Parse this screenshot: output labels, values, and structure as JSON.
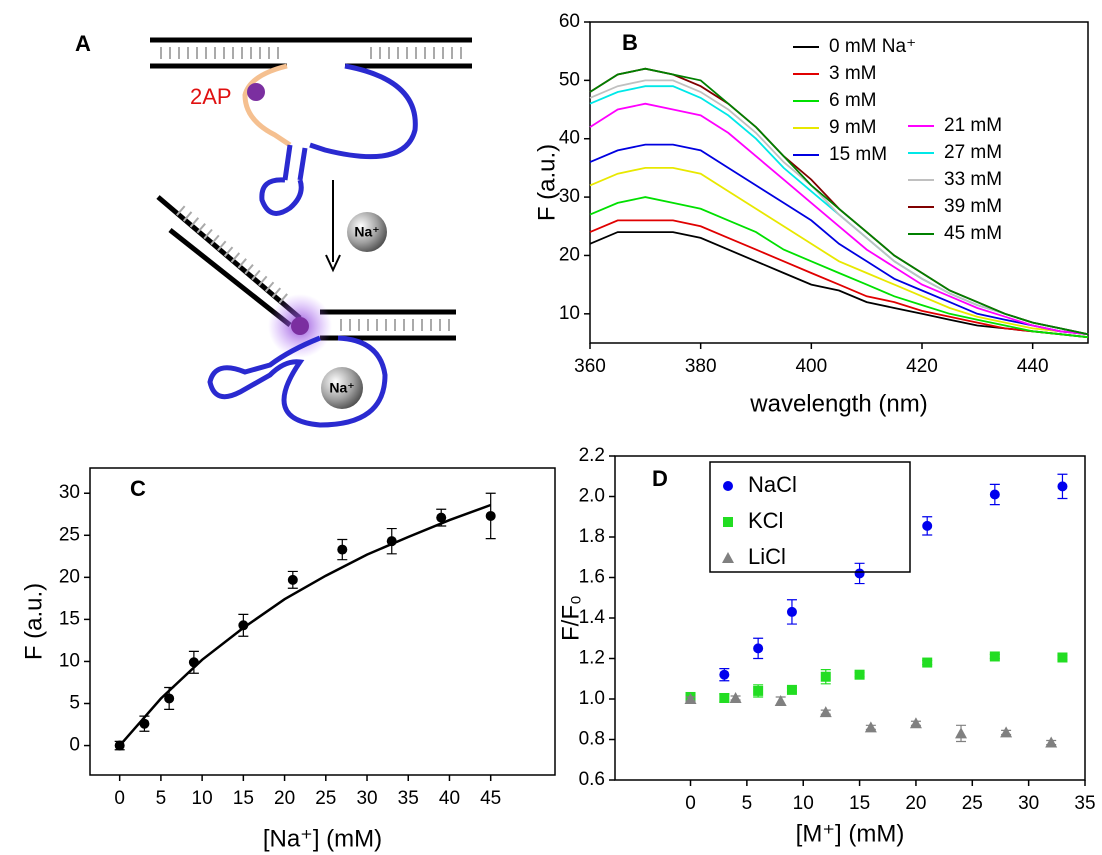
{
  "panel_a": {
    "panel": "A",
    "label_2ap": "2AP",
    "ion_top": "Na⁺",
    "ion_bottom": "Na⁺"
  },
  "chart_data": [
    {
      "type": "line",
      "panel": "B",
      "x_label": "wavelength (nm)",
      "y_label": "F  (a.u.)",
      "x": [
        360,
        365,
        370,
        375,
        380,
        385,
        390,
        395,
        400,
        405,
        410,
        415,
        420,
        425,
        430,
        435,
        440,
        445,
        450
      ],
      "xlim": [
        360,
        450
      ],
      "xticks": [
        360,
        380,
        400,
        420,
        440
      ],
      "ylim": [
        5,
        60
      ],
      "yticks": [
        10,
        20,
        30,
        40,
        50,
        60
      ],
      "series": [
        {
          "name": "0 mM Na⁺",
          "color": "#000000",
          "values": [
            22,
            24,
            24,
            24,
            23,
            21,
            19,
            17,
            15,
            14,
            12,
            11,
            10,
            9,
            8,
            7.5,
            7,
            6.5,
            6
          ]
        },
        {
          "name": "3 mM",
          "color": "#e00000",
          "values": [
            24,
            26,
            26,
            26,
            25,
            23,
            21,
            19,
            17,
            15,
            13,
            12,
            10.5,
            9.5,
            8.5,
            7.5,
            7,
            6.5,
            6
          ]
        },
        {
          "name": "6 mM",
          "color": "#00e000",
          "values": [
            27,
            29,
            30,
            29,
            28,
            26,
            24,
            21,
            19,
            17,
            15,
            13,
            11.5,
            10,
            9,
            8,
            7,
            6.5,
            6
          ]
        },
        {
          "name": "9 mM",
          "color": "#e8e800",
          "values": [
            32,
            34,
            35,
            35,
            34,
            31,
            28,
            25,
            22,
            19,
            17,
            15,
            13,
            11,
            9.5,
            8.5,
            7.5,
            7,
            6.5
          ]
        },
        {
          "name": "15 mM",
          "color": "#0000e0",
          "values": [
            36,
            38,
            39,
            39,
            38,
            35,
            32,
            29,
            26,
            22,
            19,
            16,
            14,
            12,
            10,
            9,
            8,
            7,
            6.5
          ]
        },
        {
          "name": "21 mM",
          "color": "#ff00ff",
          "values": [
            42,
            45,
            46,
            45,
            44,
            41,
            37,
            33,
            29,
            25,
            21,
            18,
            15,
            13,
            11,
            9.5,
            8,
            7,
            6.5
          ]
        },
        {
          "name": "27 mM",
          "color": "#00e8e8",
          "values": [
            46,
            48,
            49,
            49,
            47,
            44,
            40,
            35,
            31,
            27,
            23,
            19,
            16,
            13.5,
            11.5,
            10,
            8.5,
            7.5,
            6.5
          ]
        },
        {
          "name": "33 mM",
          "color": "#c0c0c0",
          "values": [
            47,
            49,
            50,
            50,
            48,
            45,
            41,
            36,
            32,
            27,
            23,
            19,
            16,
            13.5,
            11.5,
            10,
            8.5,
            7.5,
            6.5
          ]
        },
        {
          "name": "39 mM",
          "color": "#800000",
          "values": [
            48,
            51,
            52,
            51,
            49,
            46,
            42,
            37,
            33,
            28,
            24,
            20,
            17,
            14,
            12,
            10,
            8.5,
            7.5,
            6.5
          ]
        },
        {
          "name": "45 mM",
          "color": "#008000",
          "values": [
            48,
            51,
            52,
            51,
            50,
            46,
            42,
            37,
            32,
            28,
            24,
            20,
            17,
            14,
            12,
            10,
            8.5,
            7.5,
            6.5
          ]
        }
      ]
    },
    {
      "type": "scatter",
      "panel": "C",
      "x_label": "[Na⁺] (mM)",
      "y_label": "F  (a.u.)",
      "xlim": [
        -3.6,
        52.8
      ],
      "xticks": [
        0,
        5,
        10,
        15,
        20,
        25,
        30,
        35,
        40,
        45
      ],
      "ylim": [
        -3.5,
        33
      ],
      "yticks": [
        0,
        5,
        10,
        15,
        20,
        25,
        30
      ],
      "series": [
        {
          "color": "#000000",
          "marker": "circle",
          "x": [
            0,
            3,
            6,
            9,
            15,
            21,
            27,
            33,
            39,
            45
          ],
          "values": [
            0,
            2.6,
            5.6,
            9.9,
            14.3,
            19.7,
            23.3,
            24.3,
            27.1,
            27.3
          ],
          "errors": [
            0.5,
            0.9,
            1.3,
            1.3,
            1.3,
            1,
            1.2,
            1.5,
            1,
            2.7
          ]
        },
        {
          "color": "#000000",
          "style": "line",
          "x": [
            0,
            5,
            10,
            15,
            20,
            25,
            30,
            35,
            40,
            45
          ],
          "values": [
            0,
            5.6,
            10.2,
            14,
            17.4,
            20.2,
            22.7,
            24.8,
            26.8,
            28.6
          ]
        }
      ]
    },
    {
      "type": "scatter",
      "panel": "D",
      "x_label": "[M⁺] (mM)",
      "y_label": "F/F₀",
      "xlim": [
        -6.7,
        35
      ],
      "xticks": [
        0,
        5,
        10,
        15,
        20,
        25,
        30,
        35
      ],
      "ylim": [
        0.6,
        2.2
      ],
      "yticks": [
        0.6,
        0.8,
        {
          "value": 1,
          "label": "1.0"
        },
        1.2,
        1.4,
        1.6,
        1.8,
        {
          "value": 2,
          "label": "2.0"
        },
        2.2
      ],
      "series": [
        {
          "name": "NaCl",
          "color": "#0000ee",
          "marker": "circle",
          "x": [
            0,
            3,
            6,
            9,
            15,
            21,
            27,
            33
          ],
          "values": [
            1,
            1.12,
            1.25,
            1.43,
            1.62,
            1.855,
            2.01,
            2.05
          ],
          "errors": [
            0.01,
            0.03,
            0.05,
            0.06,
            0.05,
            0.045,
            0.05,
            0.06
          ]
        },
        {
          "name": "KCl",
          "color": "#22dd22",
          "marker": "square",
          "x": [
            0,
            3,
            6,
            9,
            12,
            15,
            21,
            27,
            33
          ],
          "values": [
            1.01,
            1.005,
            1.04,
            1.045,
            1.11,
            1.12,
            1.18,
            1.21,
            1.205
          ],
          "errors": [
            0.01,
            0.02,
            0.03,
            0.01,
            0.035,
            0.01,
            0.01,
            0.01,
            0.01
          ]
        },
        {
          "name": "LiCl",
          "color": "#808080",
          "marker": "triangle",
          "x": [
            0,
            4,
            8,
            12,
            16,
            20,
            24,
            28,
            32
          ],
          "values": [
            1,
            1.005,
            0.99,
            0.935,
            0.86,
            0.88,
            0.83,
            0.835,
            0.785
          ],
          "errors": [
            0.01,
            0.01,
            0.02,
            0.01,
            0.01,
            0.01,
            0.04,
            0.01,
            0.01
          ]
        }
      ]
    }
  ]
}
